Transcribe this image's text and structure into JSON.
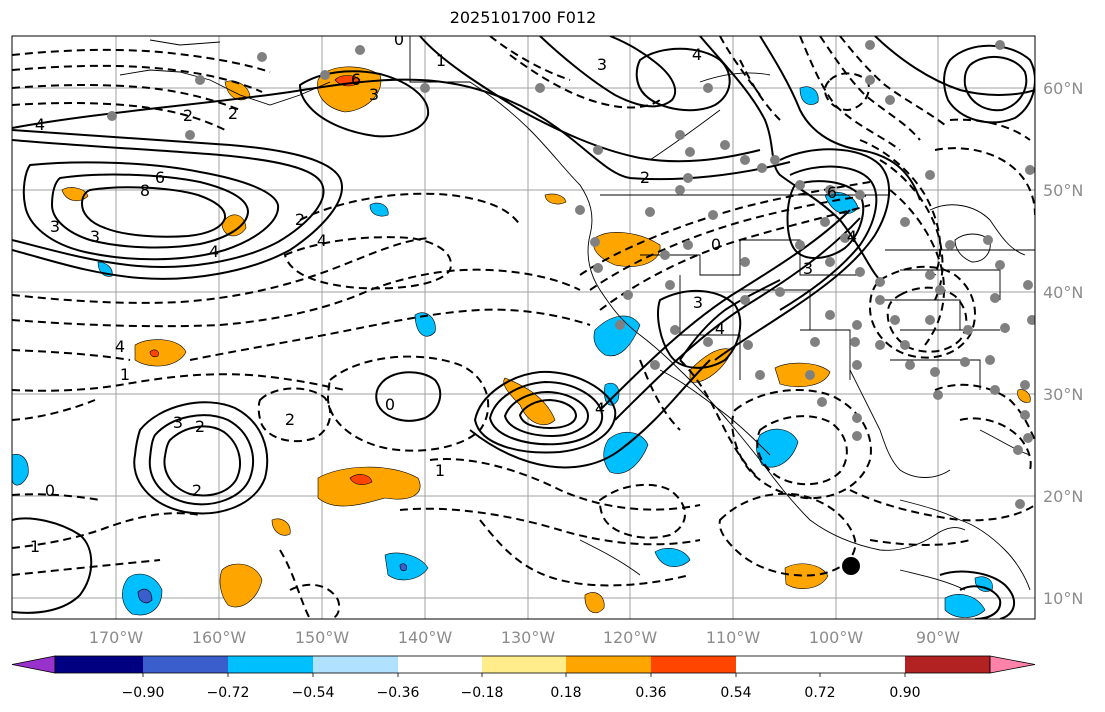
{
  "title": "2025101700 F012",
  "lon_labels": [
    "170°W",
    "160°W",
    "150°W",
    "140°W",
    "130°W",
    "120°W",
    "110°W",
    "100°W",
    "90°W"
  ],
  "lat_labels": [
    "60°N",
    "50°N",
    "40°N",
    "30°N",
    "20°N",
    "10°N"
  ],
  "colorbar": {
    "colors": [
      "#9932cc",
      "#000080",
      "#3a5fcd",
      "#00bfff",
      "#b0e2ff",
      "#ffffff",
      "#ffec8b",
      "#ffa500",
      "#ff4500",
      "#b22222",
      "#ff82ab"
    ],
    "tick_labels": [
      "−0.90",
      "−0.72",
      "−0.54",
      "−0.36",
      "−0.18",
      "0.18",
      "0.36",
      "0.54",
      "0.72",
      "0.90"
    ]
  },
  "contour_labels": [
    "0",
    "1",
    "3",
    "4",
    "6",
    "3",
    "4",
    "8",
    "6",
    "2",
    "2",
    "3",
    "3",
    "2",
    "4",
    "2",
    "4",
    "6",
    "3",
    "4",
    "3",
    "4",
    "4",
    "0",
    "2",
    "3",
    "2",
    "0",
    "1",
    "1",
    "4",
    "2",
    "1",
    "0"
  ],
  "colors": {
    "grid": "#a0a0a0",
    "coast": "#000000",
    "orange": "#ffa500",
    "yellow": "#ffec8b",
    "red": "#ff4500",
    "blue": "#00bfff",
    "lightblue": "#b0e2ff",
    "gray_dot": "#808080"
  }
}
